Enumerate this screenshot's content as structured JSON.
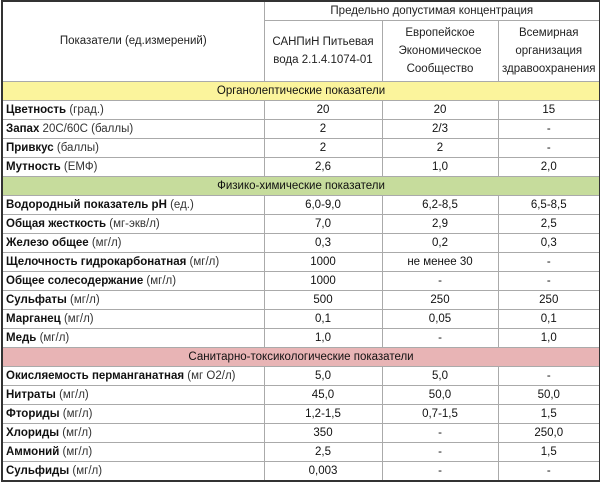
{
  "header": {
    "indicator_col": "Показатели (ед.измерений)",
    "group": "Предельно допустимая концентрация",
    "columns": [
      "САНПиН Питьевая вода 2.1.4.1074-01",
      "Европейское Экономическое Сообщество",
      "Всемирная организация здравоохранения"
    ]
  },
  "sections": [
    {
      "title": "Органолептические показатели",
      "color": "#fbf49c",
      "rows": [
        {
          "name": "Цветность",
          "unit": "(град.)",
          "values": [
            "20",
            "20",
            "15"
          ]
        },
        {
          "name": "Запах",
          "unit": "20С/60С (баллы)",
          "values": [
            "2",
            "2/3",
            "-"
          ]
        },
        {
          "name": "Привкус",
          "unit": "(баллы)",
          "values": [
            "2",
            "2",
            "-"
          ]
        },
        {
          "name": "Мутность",
          "unit": "(ЕМФ)",
          "values": [
            "2,6",
            "1,0",
            "2,0"
          ]
        }
      ]
    },
    {
      "title": "Физико-химические показатели",
      "color": "#c6dc9c",
      "rows": [
        {
          "name": "Водородный показатель pH",
          "unit": "(ед.)",
          "values": [
            "6,0-9,0",
            "6,2-8,5",
            "6,5-8,5"
          ]
        },
        {
          "name": "Общая жесткость",
          "unit": "(мг-экв/л)",
          "values": [
            "7,0",
            "2,9",
            "2,5"
          ]
        },
        {
          "name": "Железо общее",
          "unit": "(мг/л)",
          "values": [
            "0,3",
            "0,2",
            "0,3"
          ]
        },
        {
          "name": "Щелочность гидрокарбонатная",
          "unit": "(мг/л)",
          "values": [
            "1000",
            "не менее 30",
            "-"
          ]
        },
        {
          "name": "Общее солесодержание",
          "unit": "(мг/л)",
          "values": [
            "1000",
            "-",
            "-"
          ]
        },
        {
          "name": "Сульфаты",
          "unit": "(мг/л)",
          "values": [
            "500",
            "250",
            "250"
          ]
        },
        {
          "name": "Марганец",
          "unit": "(мг/л)",
          "values": [
            "0,1",
            "0,05",
            "0,1"
          ]
        },
        {
          "name": "Медь",
          "unit": "(мг/л)",
          "values": [
            "1,0",
            "-",
            "1,0"
          ]
        }
      ]
    },
    {
      "title": "Санитарно-токсикологические показатели",
      "color": "#e8b4b5",
      "rows": [
        {
          "name": "Окисляемость перманганатная",
          "unit": "(мг О2/л)",
          "values": [
            "5,0",
            "5,0",
            "-"
          ]
        },
        {
          "name": "Нитраты",
          "unit": "(мг/л)",
          "values": [
            "45,0",
            "50,0",
            "50,0"
          ]
        },
        {
          "name": "Фториды",
          "unit": "(мг/л)",
          "values": [
            "1,2-1,5",
            "0,7-1,5",
            "1,5"
          ]
        },
        {
          "name": "Хлориды",
          "unit": "(мг/л)",
          "values": [
            "350",
            "-",
            "250,0"
          ]
        },
        {
          "name": "Аммоний",
          "unit": "(мг/л)",
          "values": [
            "2,5",
            "-",
            "1,5"
          ]
        },
        {
          "name": "Сульфиды",
          "unit": "(мг/л)",
          "values": [
            "0,003",
            "-",
            "-"
          ]
        }
      ]
    }
  ]
}
